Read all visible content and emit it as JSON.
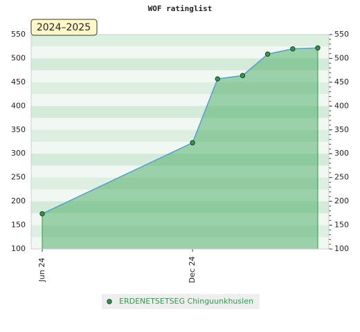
{
  "chart_data": {
    "type": "area",
    "title": "WOF ratinglist",
    "badge": "2024–2025",
    "x": [
      "2024-06",
      "2024-12",
      "2025-01",
      "2025-02",
      "2025-03",
      "2025-04",
      "2025-05"
    ],
    "xticks": [
      {
        "value": "2024-06",
        "label": "Jun 24"
      },
      {
        "value": "2024-12",
        "label": "Dec 24"
      }
    ],
    "series": [
      {
        "name": "ERDENETSETSEG Chinguunkhuslen",
        "color": "#2e9a4a",
        "values": [
          174,
          323,
          457,
          464,
          509,
          520,
          522
        ]
      }
    ],
    "ylim": [
      100,
      550
    ],
    "yticks": [
      100,
      150,
      200,
      250,
      300,
      350,
      400,
      450,
      500,
      550
    ],
    "grid": true
  }
}
